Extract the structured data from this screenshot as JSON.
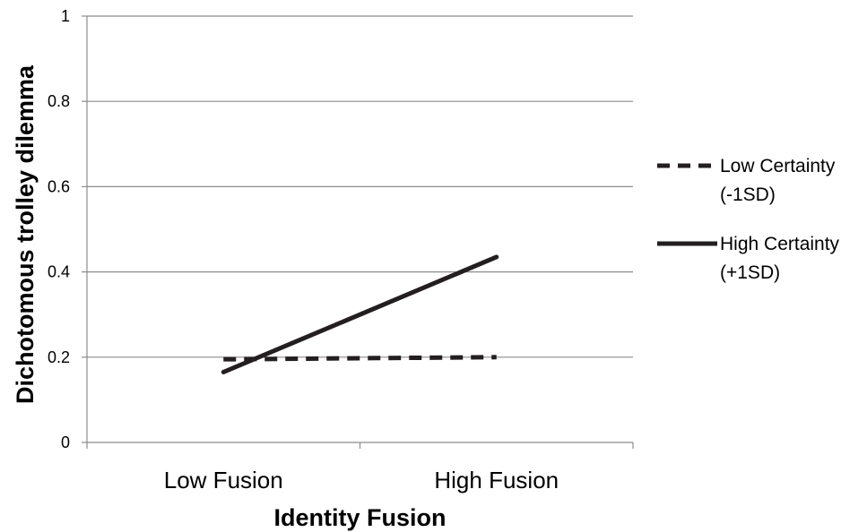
{
  "chart_data": {
    "type": "line",
    "title": "",
    "xlabel": "Identity Fusion",
    "ylabel": "Dichotomous trolley dilemma",
    "categories": [
      "Low Fusion",
      "High Fusion"
    ],
    "ylim": [
      0,
      1
    ],
    "yticks": [
      "0",
      "0.2",
      "0.4",
      "0.6",
      "0.8",
      "1"
    ],
    "grid": true,
    "legend_position": "right",
    "series": [
      {
        "name_lines": [
          "Low Certainty",
          "(-1SD)"
        ],
        "values": [
          0.195,
          0.2
        ],
        "style": "dashed",
        "color": "#231f20"
      },
      {
        "name_lines": [
          "High Certainty",
          "(+1SD)"
        ],
        "values": [
          0.165,
          0.435
        ],
        "style": "solid",
        "color": "#231f20"
      }
    ]
  }
}
